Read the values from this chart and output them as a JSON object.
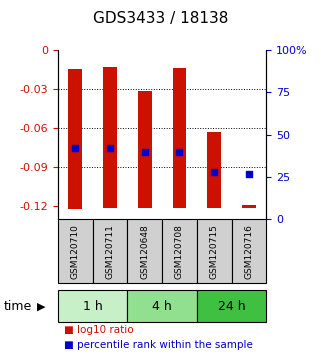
{
  "title": "GDS3433 / 18138",
  "samples": [
    "GSM120710",
    "GSM120711",
    "GSM120648",
    "GSM120708",
    "GSM120715",
    "GSM120716"
  ],
  "groups": [
    {
      "label": "1 h",
      "indices": [
        0,
        1
      ],
      "color": "#c8f0c8"
    },
    {
      "label": "4 h",
      "indices": [
        2,
        3
      ],
      "color": "#90e090"
    },
    {
      "label": "24 h",
      "indices": [
        4,
        5
      ],
      "color": "#40c040"
    }
  ],
  "log10_ratio": [
    -0.122,
    -0.121,
    -0.121,
    -0.121,
    -0.121,
    -0.121
  ],
  "bar_top": [
    -0.015,
    -0.013,
    -0.032,
    -0.014,
    -0.063,
    -0.119
  ],
  "percentile_rank": [
    42,
    42,
    40,
    40,
    28,
    27
  ],
  "bar_color": "#cc1100",
  "dot_color": "#0000cc",
  "ylim_left": [
    -0.13,
    0.0
  ],
  "yticks_left": [
    0,
    -0.03,
    -0.06,
    -0.09,
    -0.12
  ],
  "yticks_right": [
    0,
    25,
    50,
    75,
    100
  ],
  "ylabel_left_color": "#cc1100",
  "ylabel_right_color": "#0000cc",
  "bar_width": 0.4,
  "legend_red_label": "log10 ratio",
  "legend_blue_label": "percentile rank within the sample",
  "time_label": "time"
}
